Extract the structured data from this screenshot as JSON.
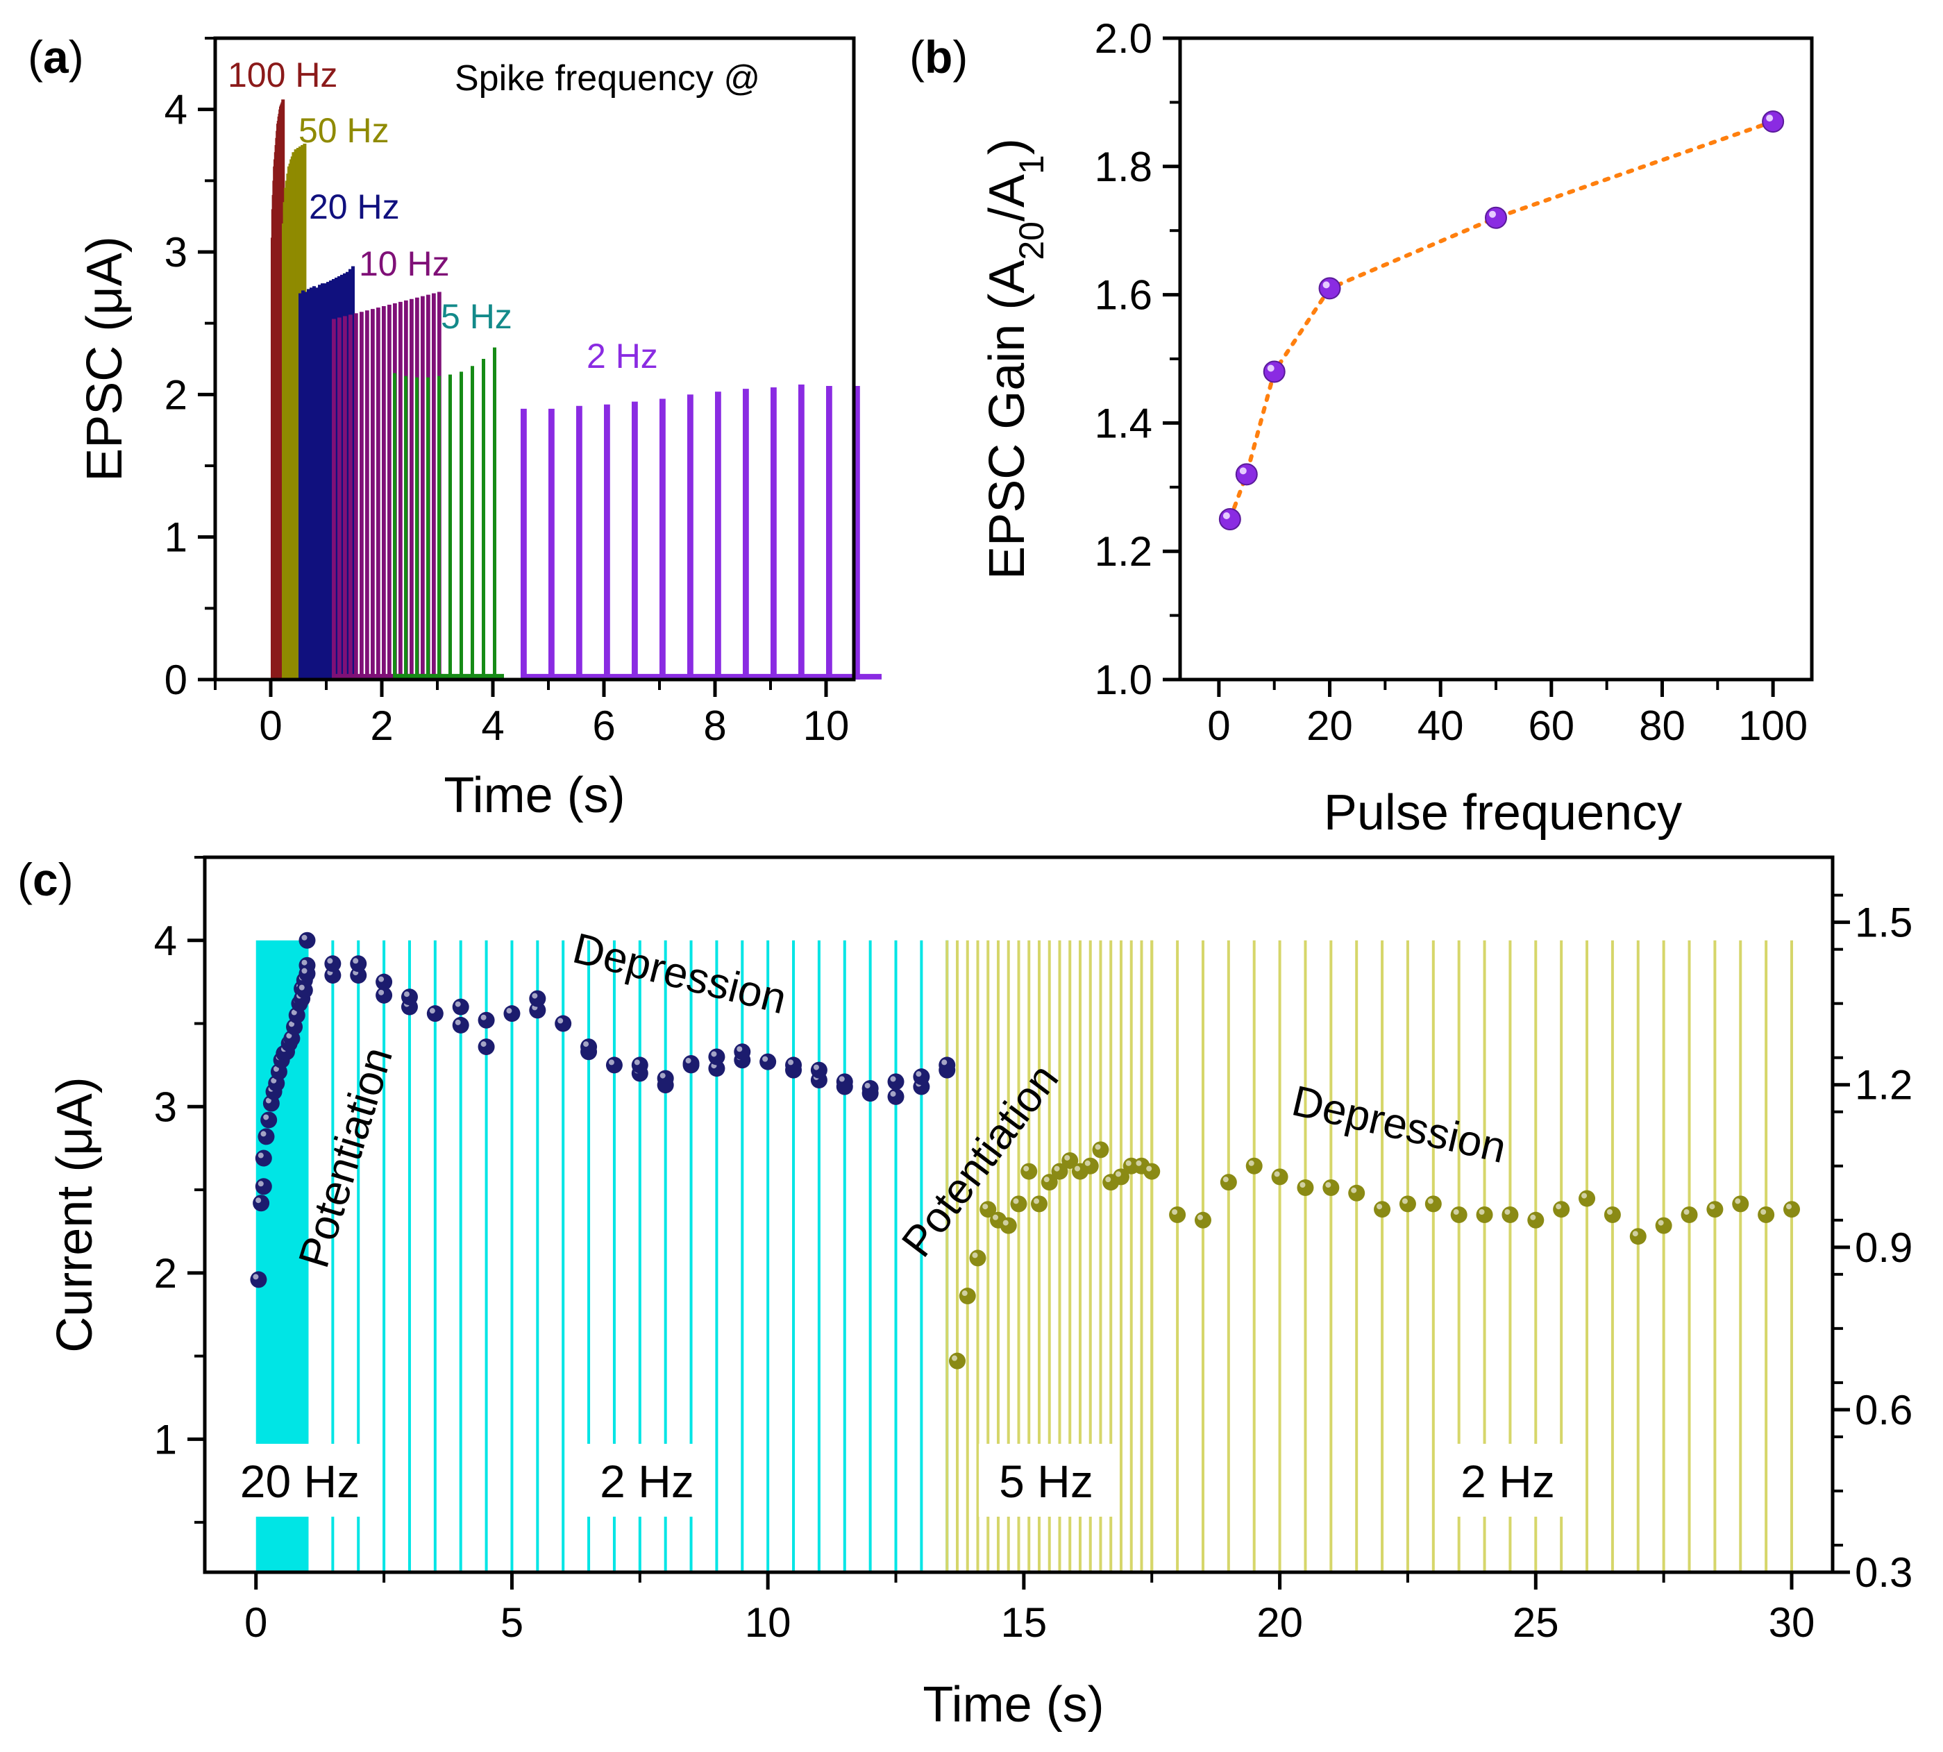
{
  "colors": {
    "hz100": "#8b1a1a",
    "hz50": "#8f8a00",
    "hz20": "#10107e",
    "hz10": "#7f1077",
    "hz5": "#168b16",
    "hz2": "#8a2be2",
    "hz5_label": "#138a8a",
    "b_marker": "#8a2be2",
    "b_line": "#ff7f0e",
    "c_navy": "#1c1c6e",
    "c_olive": "#8a8a14",
    "c_cyan": "#00e5e5",
    "c_yellow": "#d6d66a"
  },
  "panel_a": {
    "label_open": "(",
    "label_letter": "a",
    "label_close": ")",
    "note": "Spike frequency @",
    "chart_data": {
      "type": "line",
      "xlabel": "Time (s)",
      "ylabel": "EPSC (μA)",
      "xlim": [
        -1,
        10.5
      ],
      "ylim": [
        0,
        4.5
      ],
      "xticks": [
        0,
        2,
        4,
        6,
        8,
        10
      ],
      "yticks": [
        0,
        1,
        2,
        3,
        4
      ],
      "series": [
        {
          "name": "100 Hz",
          "color_key": "hz100",
          "start": 0,
          "interval": 0.01,
          "peaks": [
            3.1,
            3.3,
            3.4,
            3.5,
            3.6,
            3.65,
            3.7,
            3.75,
            3.8,
            3.85,
            3.9,
            3.92,
            3.95,
            3.97,
            4.0,
            4.02,
            4.03,
            4.04,
            4.05,
            4.07
          ]
        },
        {
          "name": "50 Hz",
          "color_key": "hz50",
          "start": 0.2,
          "interval": 0.02,
          "peaks": [
            3.2,
            3.35,
            3.45,
            3.5,
            3.55,
            3.6,
            3.62,
            3.65,
            3.67,
            3.7,
            3.7,
            3.72,
            3.72,
            3.73,
            3.73,
            3.74,
            3.74,
            3.75,
            3.75,
            3.76
          ]
        },
        {
          "name": "20 Hz",
          "color_key": "hz20",
          "start": 0.5,
          "interval": 0.05,
          "peaks": [
            2.71,
            2.73,
            2.72,
            2.74,
            2.75,
            2.76,
            2.75,
            2.77,
            2.78,
            2.78,
            2.79,
            2.8,
            2.81,
            2.82,
            2.83,
            2.84,
            2.85,
            2.86,
            2.88,
            2.9
          ]
        },
        {
          "name": "10 Hz",
          "color_key": "hz10",
          "start": 1.1,
          "interval": 0.1,
          "peaks": [
            2.53,
            2.54,
            2.55,
            2.56,
            2.57,
            2.58,
            2.59,
            2.6,
            2.61,
            2.62,
            2.63,
            2.64,
            2.65,
            2.66,
            2.67,
            2.68,
            2.69,
            2.7,
            2.71,
            2.72
          ]
        },
        {
          "name": "5 Hz",
          "color_key": "hz5",
          "start": 2.2,
          "interval": 0.2,
          "peaks": [
            2.15,
            2.13,
            2.12,
            2.12,
            2.13,
            2.14,
            2.16,
            2.2,
            2.25,
            2.33
          ]
        },
        {
          "name": "2 Hz",
          "color_key": "hz2",
          "start": 4.5,
          "interval": 0.5,
          "peaks": [
            1.9,
            1.9,
            1.92,
            1.93,
            1.95,
            1.97,
            2.0,
            2.02,
            2.04,
            2.05,
            2.07,
            2.06,
            2.06
          ]
        }
      ]
    }
  },
  "panel_b": {
    "label_open": "(",
    "label_letter": "b",
    "label_close": ")",
    "chart_data": {
      "type": "scatter",
      "xlabel": "Pulse frequency",
      "ylabel_main": "EPSC Gain (A",
      "ylabel_sub1": "20",
      "ylabel_mid": "/A",
      "ylabel_sub2": "1",
      "ylabel_end": ")",
      "xlim": [
        -7,
        107
      ],
      "ylim": [
        1.0,
        2.0
      ],
      "xticks": [
        0,
        20,
        40,
        60,
        80,
        100
      ],
      "yticks": [
        1.0,
        1.2,
        1.4,
        1.6,
        1.8,
        2.0
      ],
      "x": [
        2,
        5,
        10,
        20,
        50,
        100
      ],
      "y": [
        1.25,
        1.32,
        1.48,
        1.61,
        1.72,
        1.87
      ]
    }
  },
  "panel_c": {
    "label_open": "(",
    "label_letter": "c",
    "label_close": ")",
    "annotations": {
      "potentiation1": "Potentiation",
      "depression1": "Depression",
      "potentiation2": "Potentiation",
      "depression2": "Depression"
    },
    "freq_labels": [
      "20 Hz",
      "2 Hz",
      "5 Hz",
      "2 Hz"
    ],
    "chart_data": {
      "type": "scatter",
      "xlabel": "Time (s)",
      "ylabel": "Current (μA)",
      "xlim": [
        -1,
        30.8
      ],
      "ylim_left": [
        0.2,
        4.5
      ],
      "ylim_right": [
        0.3,
        1.62
      ],
      "xticks": [
        0,
        5,
        10,
        15,
        20,
        25,
        30
      ],
      "yticks_left": [
        1,
        2,
        3,
        4
      ],
      "yticks_right": [
        "0.3",
        "0.6",
        "0.9",
        "1.2",
        "1.5"
      ],
      "pulse_bands": [
        {
          "color_key": "c_cyan",
          "from": 0,
          "to": 1.0,
          "interval": 0.05
        },
        {
          "color_key": "c_cyan",
          "from": 1.0,
          "to": 13.5,
          "interval": 0.5
        },
        {
          "color_key": "c_yellow",
          "from": 13.5,
          "to": 17.5,
          "interval": 0.2
        },
        {
          "color_key": "c_yellow",
          "from": 17.5,
          "to": 30.0,
          "interval": 0.5
        }
      ],
      "series": [
        {
          "axis": "left",
          "color_key": "c_navy",
          "x": [
            0.05,
            0.1,
            0.15,
            0.15,
            0.2,
            0.25,
            0.3,
            0.35,
            0.4,
            0.45,
            0.5,
            0.55,
            0.6,
            0.65,
            0.7,
            0.75,
            0.8,
            0.85,
            0.9,
            0.95,
            1.0,
            1.0,
            0.9,
            0.95,
            1.0,
            1.5,
            1.5,
            2.0,
            2.0,
            2.5,
            2.5,
            3.0,
            3.0,
            3.5,
            4.0,
            4.0,
            4.5,
            4.5,
            5.0,
            5.5,
            5.5,
            6.0,
            6.5,
            6.5,
            7.0,
            7.5,
            7.5,
            8.0,
            8.0,
            8.5,
            8.5,
            9.0,
            9.0,
            9.5,
            9.5,
            10.0,
            10.5,
            10.5,
            11.0,
            11.0,
            11.5,
            11.5,
            12.0,
            12.0,
            12.5,
            12.5,
            13.0,
            13.0,
            13.5,
            13.5
          ],
          "y": [
            1.96,
            2.42,
            2.52,
            2.69,
            2.82,
            2.92,
            3.02,
            3.09,
            3.14,
            3.21,
            3.28,
            3.32,
            3.33,
            3.38,
            3.41,
            3.48,
            3.55,
            3.62,
            3.71,
            3.76,
            3.85,
            4.0,
            3.65,
            3.7,
            3.8,
            3.79,
            3.86,
            3.79,
            3.86,
            3.67,
            3.75,
            3.6,
            3.66,
            3.56,
            3.49,
            3.6,
            3.36,
            3.52,
            3.56,
            3.58,
            3.65,
            3.5,
            3.33,
            3.36,
            3.25,
            3.2,
            3.25,
            3.13,
            3.17,
            3.25,
            3.26,
            3.23,
            3.3,
            3.28,
            3.33,
            3.27,
            3.22,
            3.25,
            3.16,
            3.22,
            3.12,
            3.15,
            3.08,
            3.11,
            3.06,
            3.15,
            3.12,
            3.18,
            3.22,
            3.25
          ]
        },
        {
          "axis": "right",
          "color_key": "c_olive",
          "x": [
            13.7,
            13.9,
            14.1,
            14.3,
            14.5,
            14.7,
            14.9,
            15.1,
            15.3,
            15.5,
            15.7,
            15.9,
            16.1,
            16.3,
            16.5,
            16.7,
            16.9,
            17.1,
            17.3,
            17.5,
            18.0,
            18.5,
            19.0,
            19.5,
            20.0,
            20.5,
            21.0,
            21.5,
            22.0,
            22.5,
            23.0,
            23.5,
            24.0,
            24.5,
            25.0,
            25.5,
            26.0,
            26.5,
            27.0,
            27.5,
            28.0,
            28.5,
            29.0,
            29.5,
            30.0
          ],
          "y": [
            0.69,
            0.81,
            0.88,
            0.97,
            0.95,
            0.94,
            0.98,
            1.04,
            0.98,
            1.02,
            1.04,
            1.06,
            1.04,
            1.05,
            1.08,
            1.02,
            1.03,
            1.05,
            1.05,
            1.04,
            0.96,
            0.95,
            1.02,
            1.05,
            1.03,
            1.01,
            1.01,
            1.0,
            0.97,
            0.98,
            0.98,
            0.96,
            0.96,
            0.96,
            0.95,
            0.97,
            0.99,
            0.96,
            0.92,
            0.94,
            0.96,
            0.97,
            0.98,
            0.96,
            0.97
          ]
        }
      ]
    }
  }
}
